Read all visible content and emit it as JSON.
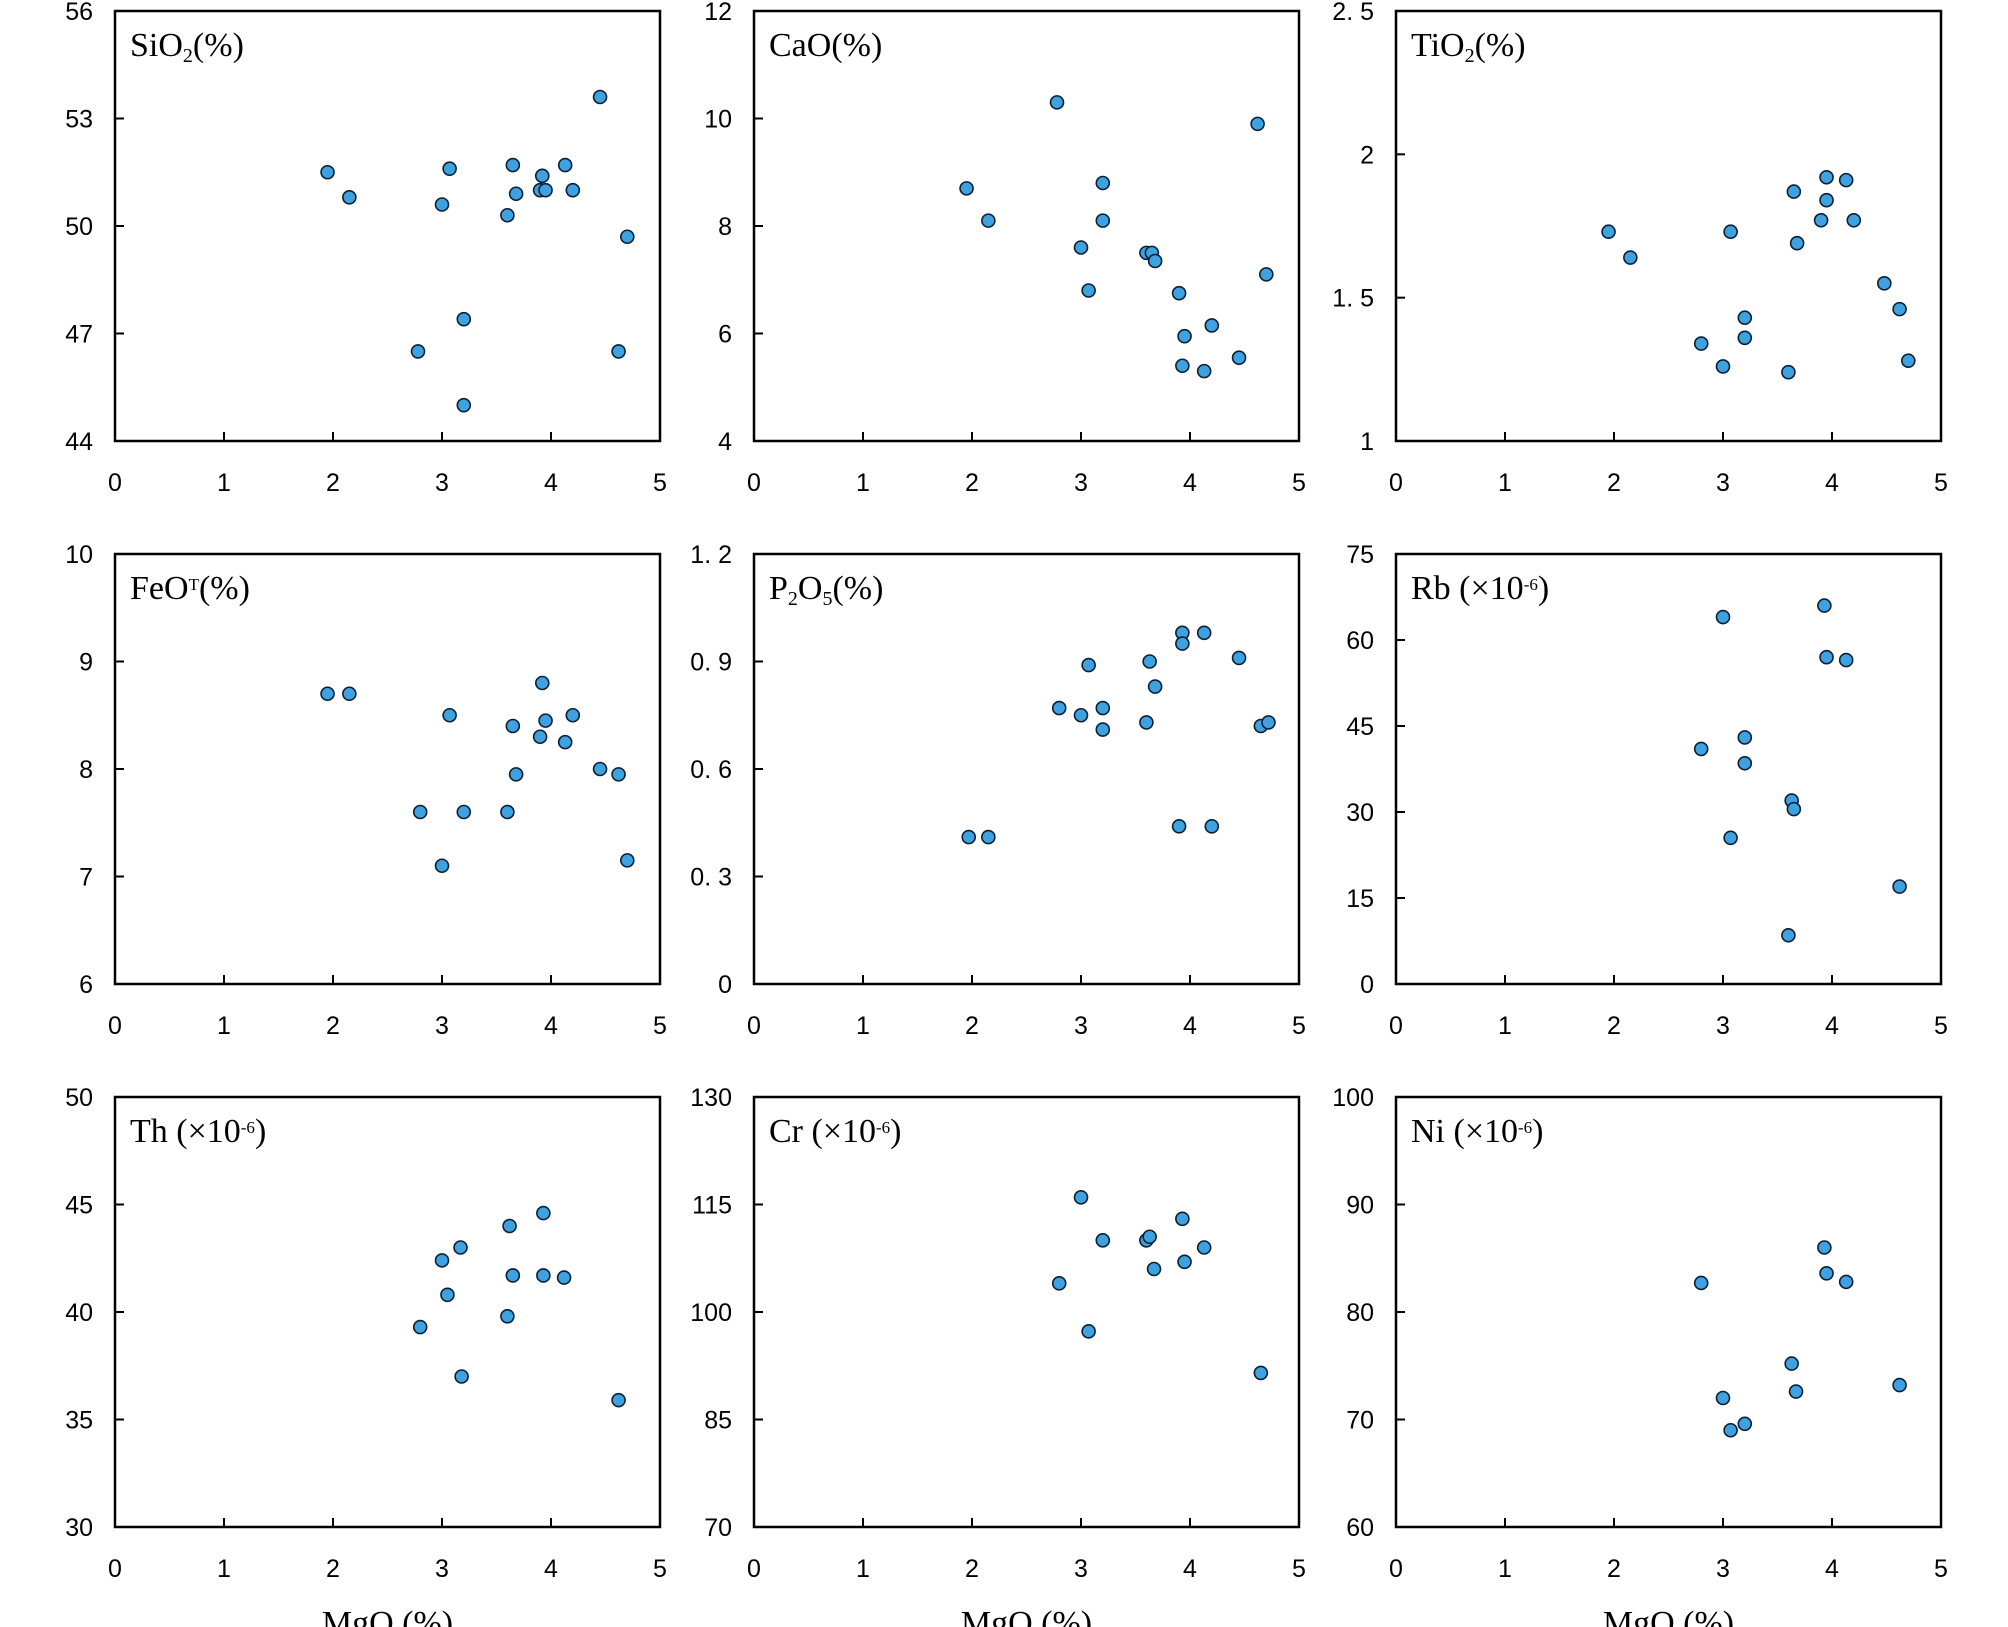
{
  "figure": {
    "x_axis_label": "MgO (%)"
  },
  "colors": {
    "point_fill": "#3ea1e0",
    "point_stroke": "#0b1f33",
    "axis": "#000000"
  },
  "chart_data": [
    {
      "type": "scatter",
      "title": "SiO2 (%)",
      "title_parts": [
        [
          "SiO",
          "n"
        ],
        [
          "2",
          "sub"
        ],
        [
          "(%)",
          "n"
        ]
      ],
      "xlabel": "MgO (%)",
      "ylabel": "SiO2 (%)",
      "xlim": [
        0,
        5
      ],
      "ylim": [
        44,
        56
      ],
      "xticks": [
        "0",
        "1",
        "2",
        "3",
        "4",
        "5"
      ],
      "yticks": [
        "44",
        "47",
        "50",
        "53",
        "56"
      ],
      "x": [
        1.95,
        2.15,
        2.78,
        3.0,
        3.07,
        3.2,
        3.2,
        3.6,
        3.65,
        3.68,
        3.9,
        3.92,
        3.95,
        4.13,
        4.2,
        4.45,
        4.62,
        4.7
      ],
      "y": [
        51.5,
        50.8,
        46.5,
        50.6,
        51.6,
        47.4,
        45.0,
        50.3,
        51.7,
        50.9,
        51.0,
        51.4,
        51.0,
        51.7,
        51.0,
        53.6,
        46.5,
        49.7
      ]
    },
    {
      "type": "scatter",
      "title": "CaO (%)",
      "title_parts": [
        [
          "CaO",
          "n"
        ],
        [
          "(%)",
          "n"
        ]
      ],
      "xlabel": "MgO (%)",
      "ylabel": "CaO (%)",
      "xlim": [
        0,
        5
      ],
      "ylim": [
        4,
        12
      ],
      "xticks": [
        "0",
        "1",
        "2",
        "3",
        "4",
        "5"
      ],
      "yticks": [
        "4",
        "6",
        "8",
        "10",
        "12"
      ],
      "x": [
        1.95,
        2.15,
        2.78,
        3.0,
        3.07,
        3.2,
        3.2,
        3.6,
        3.65,
        3.68,
        3.9,
        3.95,
        3.93,
        4.13,
        4.2,
        4.45,
        4.62,
        4.7
      ],
      "y": [
        8.7,
        8.1,
        10.3,
        7.6,
        6.8,
        8.8,
        8.1,
        7.5,
        7.5,
        7.35,
        6.75,
        5.95,
        5.4,
        5.3,
        6.15,
        5.55,
        9.9,
        7.1
      ]
    },
    {
      "type": "scatter",
      "title": "TiO2 (%)",
      "title_parts": [
        [
          "TiO",
          "n"
        ],
        [
          "2",
          "sub"
        ],
        [
          "(%)",
          "n"
        ]
      ],
      "xlabel": "MgO (%)",
      "ylabel": "TiO2 (%)",
      "xlim": [
        0,
        5
      ],
      "ylim": [
        1,
        2.5
      ],
      "xticks": [
        "0",
        "1",
        "2",
        "3",
        "4",
        "5"
      ],
      "yticks": [
        "1",
        "1. 5",
        "2",
        "2. 5"
      ],
      "x": [
        1.95,
        2.15,
        2.8,
        3.0,
        3.07,
        3.2,
        3.2,
        3.6,
        3.65,
        3.68,
        3.9,
        3.95,
        3.95,
        4.13,
        4.2,
        4.48,
        4.62,
        4.7
      ],
      "y": [
        1.73,
        1.64,
        1.34,
        1.26,
        1.73,
        1.43,
        1.36,
        1.24,
        1.87,
        1.69,
        1.77,
        1.84,
        1.92,
        1.91,
        1.77,
        1.55,
        1.46,
        1.28
      ]
    },
    {
      "type": "scatter",
      "title": "FeOT (%)",
      "title_parts": [
        [
          "FeO",
          "n"
        ],
        [
          "T",
          "sup"
        ],
        [
          "(%)",
          "n"
        ]
      ],
      "xlabel": "MgO (%)",
      "ylabel": "FeOT (%)",
      "xlim": [
        0,
        5
      ],
      "ylim": [
        6,
        10
      ],
      "xticks": [
        "0",
        "1",
        "2",
        "3",
        "4",
        "5"
      ],
      "yticks": [
        "6",
        "7",
        "8",
        "9",
        "10"
      ],
      "x": [
        1.95,
        2.15,
        2.8,
        3.0,
        3.07,
        3.2,
        3.6,
        3.65,
        3.68,
        3.9,
        3.92,
        3.95,
        4.13,
        4.2,
        4.45,
        4.62,
        4.7
      ],
      "y": [
        8.7,
        8.7,
        7.6,
        7.1,
        8.5,
        7.6,
        7.6,
        8.4,
        7.95,
        8.3,
        8.8,
        8.45,
        8.25,
        8.5,
        8.0,
        7.95,
        7.15
      ]
    },
    {
      "type": "scatter",
      "title": "P2O5 (%)",
      "title_parts": [
        [
          "P",
          "n"
        ],
        [
          "2",
          "sub"
        ],
        [
          "O",
          "n"
        ],
        [
          "5",
          "sub"
        ],
        [
          "(%)",
          "n"
        ]
      ],
      "xlabel": "MgO (%)",
      "ylabel": "P2O5 (%)",
      "xlim": [
        0,
        5
      ],
      "ylim": [
        0,
        1.2
      ],
      "xticks": [
        "0",
        "1",
        "2",
        "3",
        "4",
        "5"
      ],
      "yticks": [
        "0",
        "0. 3",
        "0. 6",
        "0. 9",
        "1. 2"
      ],
      "x": [
        1.97,
        2.15,
        2.8,
        3.0,
        3.07,
        3.2,
        3.2,
        3.6,
        3.63,
        3.68,
        3.9,
        3.93,
        3.93,
        4.13,
        4.2,
        4.45,
        4.65,
        4.72
      ],
      "y": [
        0.41,
        0.41,
        0.77,
        0.75,
        0.89,
        0.77,
        0.71,
        0.73,
        0.9,
        0.83,
        0.44,
        0.98,
        0.95,
        0.98,
        0.44,
        0.91,
        0.72,
        0.73
      ]
    },
    {
      "type": "scatter",
      "title": "Rb (×10-6)",
      "title_parts": [
        [
          "Rb (×10",
          "n"
        ],
        [
          "-6",
          "sup"
        ],
        [
          ")",
          "n"
        ]
      ],
      "xlabel": "MgO (%)",
      "ylabel": "Rb (×10-6)",
      "xlim": [
        0,
        5
      ],
      "ylim": [
        0,
        75
      ],
      "xticks": [
        "0",
        "1",
        "2",
        "3",
        "4",
        "5"
      ],
      "yticks": [
        "0",
        "15",
        "30",
        "45",
        "60",
        "75"
      ],
      "x": [
        2.8,
        3.0,
        3.07,
        3.2,
        3.2,
        3.6,
        3.63,
        3.65,
        3.93,
        3.95,
        4.13,
        4.62
      ],
      "y": [
        41,
        64,
        25.5,
        43,
        38.5,
        8.5,
        32,
        30.5,
        66,
        57,
        56.5,
        17
      ]
    },
    {
      "type": "scatter",
      "title": "Th (×10-6)",
      "title_parts": [
        [
          "Th (×10",
          "n"
        ],
        [
          "-6",
          "sup"
        ],
        [
          ")",
          "n"
        ]
      ],
      "xlabel": "MgO (%)",
      "ylabel": "Th (×10-6)",
      "xlim": [
        0,
        5
      ],
      "ylim": [
        30,
        50
      ],
      "xticks": [
        "0",
        "1",
        "2",
        "3",
        "4",
        "5"
      ],
      "yticks": [
        "30",
        "35",
        "40",
        "45",
        "50"
      ],
      "x": [
        2.8,
        3.0,
        3.05,
        3.17,
        3.18,
        3.6,
        3.62,
        3.65,
        3.93,
        3.93,
        4.12,
        4.62
      ],
      "y": [
        39.3,
        42.4,
        40.8,
        43.0,
        37.0,
        39.8,
        44.0,
        41.7,
        44.6,
        41.7,
        41.6,
        35.9
      ]
    },
    {
      "type": "scatter",
      "title": "Cr (×10-6)",
      "title_parts": [
        [
          "Cr (×10",
          "n"
        ],
        [
          "-6",
          "sup"
        ],
        [
          ")",
          "n"
        ]
      ],
      "xlabel": "MgO (%)",
      "ylabel": "Cr (×10-6)",
      "xlim": [
        0,
        5
      ],
      "ylim": [
        70,
        130
      ],
      "xticks": [
        "0",
        "1",
        "2",
        "3",
        "4",
        "5"
      ],
      "yticks": [
        "70",
        "85",
        "100",
        "115",
        "130"
      ],
      "x": [
        2.8,
        3.0,
        3.07,
        3.2,
        3.6,
        3.63,
        3.67,
        3.93,
        3.95,
        4.13,
        4.65
      ],
      "y": [
        104,
        116,
        97.3,
        110,
        110,
        110.5,
        106,
        113,
        107,
        109,
        91.5
      ]
    },
    {
      "type": "scatter",
      "title": "Ni (×10-6)",
      "title_parts": [
        [
          "Ni (×10",
          "n"
        ],
        [
          "-6",
          "sup"
        ],
        [
          ")",
          "n"
        ]
      ],
      "xlabel": "MgO (%)",
      "ylabel": "Ni (×10-6)",
      "xlim": [
        0,
        5
      ],
      "ylim": [
        60,
        100
      ],
      "xticks": [
        "0",
        "1",
        "2",
        "3",
        "4",
        "5"
      ],
      "yticks": [
        "60",
        "70",
        "80",
        "90",
        "100"
      ],
      "x": [
        2.8,
        3.0,
        3.07,
        3.2,
        3.63,
        3.67,
        3.93,
        3.95,
        4.13,
        4.62
      ],
      "y": [
        82.7,
        72.0,
        69.0,
        69.6,
        75.2,
        72.6,
        86.0,
        83.6,
        82.8,
        73.2
      ]
    }
  ]
}
